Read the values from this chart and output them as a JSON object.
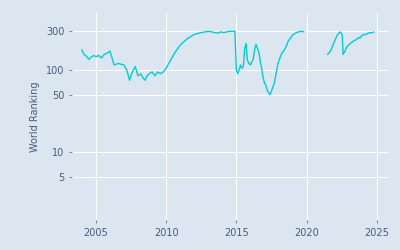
{
  "ylabel": "World Ranking",
  "line_color": "#00CED1",
  "bg_color": "#DCE6F0",
  "fig_bg_color": "#DCE6F0",
  "grid_color": "#FFFFFF",
  "line_width": 1.0,
  "xlim": [
    2003.3,
    2025.8
  ],
  "ylim_log": [
    1.5,
    500
  ],
  "yticks": [
    5,
    10,
    50,
    100,
    300
  ],
  "xticks": [
    2005,
    2010,
    2015,
    2020,
    2025
  ],
  "segments": [
    [
      [
        2004.0,
        175
      ],
      [
        2004.15,
        155
      ],
      [
        2004.3,
        148
      ],
      [
        2004.5,
        135
      ],
      [
        2004.7,
        145
      ],
      [
        2004.85,
        150
      ],
      [
        2005.0,
        145
      ],
      [
        2005.2,
        150
      ],
      [
        2005.4,
        140
      ],
      [
        2005.6,
        155
      ],
      [
        2005.8,
        160
      ],
      [
        2006.0,
        170
      ],
      [
        2006.3,
        115
      ],
      [
        2006.6,
        120
      ],
      [
        2007.0,
        115
      ],
      [
        2007.2,
        100
      ],
      [
        2007.4,
        75
      ],
      [
        2007.6,
        95
      ],
      [
        2007.8,
        110
      ],
      [
        2008.0,
        85
      ],
      [
        2008.2,
        90
      ],
      [
        2008.35,
        80
      ],
      [
        2008.5,
        75
      ],
      [
        2008.65,
        85
      ],
      [
        2008.8,
        90
      ],
      [
        2009.0,
        95
      ],
      [
        2009.2,
        85
      ],
      [
        2009.4,
        95
      ],
      [
        2009.6,
        90
      ],
      [
        2009.8,
        95
      ],
      [
        2010.0,
        105
      ],
      [
        2010.3,
        130
      ],
      [
        2010.6,
        160
      ],
      [
        2011.0,
        200
      ],
      [
        2011.5,
        240
      ],
      [
        2012.0,
        270
      ],
      [
        2012.5,
        285
      ],
      [
        2013.0,
        295
      ],
      [
        2013.3,
        290
      ],
      [
        2013.6,
        280
      ],
      [
        2013.9,
        290
      ],
      [
        2014.1,
        285
      ],
      [
        2014.3,
        290
      ],
      [
        2014.5,
        295
      ],
      [
        2014.7,
        295
      ],
      [
        2014.9,
        295
      ],
      [
        2015.0,
        100
      ],
      [
        2015.1,
        90
      ],
      [
        2015.2,
        100
      ],
      [
        2015.3,
        115
      ],
      [
        2015.4,
        105
      ],
      [
        2015.5,
        110
      ],
      [
        2015.6,
        185
      ],
      [
        2015.7,
        210
      ],
      [
        2015.75,
        155
      ],
      [
        2015.8,
        130
      ],
      [
        2015.9,
        120
      ],
      [
        2016.0,
        115
      ],
      [
        2016.1,
        125
      ],
      [
        2016.2,
        135
      ],
      [
        2016.3,
        175
      ],
      [
        2016.4,
        205
      ],
      [
        2016.5,
        185
      ],
      [
        2016.6,
        165
      ],
      [
        2016.7,
        130
      ],
      [
        2016.8,
        105
      ],
      [
        2016.9,
        82
      ],
      [
        2017.0,
        70
      ],
      [
        2017.1,
        65
      ],
      [
        2017.2,
        57
      ],
      [
        2017.3,
        53
      ],
      [
        2017.4,
        50
      ],
      [
        2017.5,
        55
      ],
      [
        2017.6,
        62
      ],
      [
        2017.7,
        68
      ],
      [
        2017.8,
        85
      ],
      [
        2017.9,
        105
      ],
      [
        2018.0,
        125
      ],
      [
        2018.2,
        155
      ],
      [
        2018.5,
        185
      ],
      [
        2018.7,
        225
      ],
      [
        2019.0,
        265
      ],
      [
        2019.2,
        280
      ],
      [
        2019.4,
        290
      ],
      [
        2019.6,
        295
      ],
      [
        2019.8,
        292
      ]
    ],
    [
      [
        2021.5,
        155
      ],
      [
        2021.6,
        160
      ],
      [
        2021.7,
        170
      ],
      [
        2021.8,
        185
      ],
      [
        2021.9,
        205
      ],
      [
        2022.0,
        225
      ],
      [
        2022.1,
        245
      ],
      [
        2022.2,
        268
      ],
      [
        2022.3,
        280
      ],
      [
        2022.4,
        290
      ],
      [
        2022.45,
        285
      ],
      [
        2022.5,
        275
      ],
      [
        2022.55,
        260
      ],
      [
        2022.6,
        155
      ],
      [
        2022.7,
        165
      ],
      [
        2022.8,
        180
      ],
      [
        2022.9,
        195
      ],
      [
        2023.0,
        200
      ],
      [
        2023.1,
        210
      ],
      [
        2023.2,
        215
      ],
      [
        2023.3,
        222
      ],
      [
        2023.4,
        228
      ],
      [
        2023.5,
        232
      ],
      [
        2023.6,
        238
      ],
      [
        2023.7,
        248
      ],
      [
        2023.8,
        244
      ],
      [
        2023.9,
        258
      ],
      [
        2024.0,
        265
      ],
      [
        2024.1,
        272
      ],
      [
        2024.2,
        268
      ],
      [
        2024.3,
        275
      ],
      [
        2024.4,
        280
      ],
      [
        2024.5,
        285
      ],
      [
        2024.6,
        282
      ],
      [
        2024.7,
        286
      ],
      [
        2024.8,
        290
      ]
    ]
  ]
}
